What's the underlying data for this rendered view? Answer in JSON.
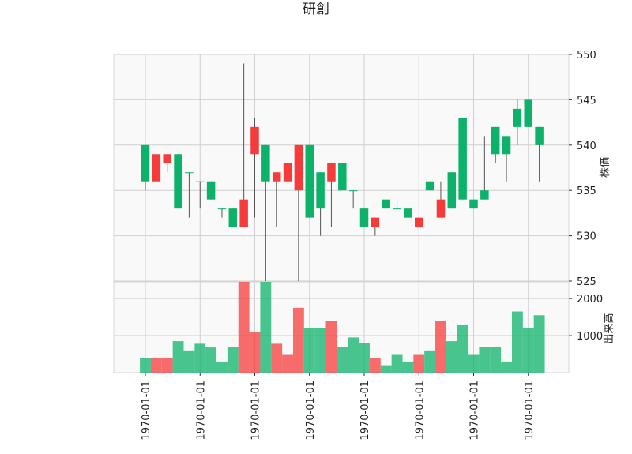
{
  "chart_data": {
    "type": "candlestick",
    "title": "研創",
    "price_ylabel": "株価",
    "volume_ylabel": "出来高",
    "x_tick_labels": [
      "1970-01-01",
      "1970-01-01",
      "1970-01-01",
      "1970-01-01",
      "1970-01-01",
      "1970-01-01",
      "1970-01-01",
      "1970-01-01"
    ],
    "price_ylim": [
      525,
      550
    ],
    "price_ticks": [
      525,
      530,
      535,
      540,
      545,
      550
    ],
    "volume_ticks": [
      1000,
      2000
    ],
    "volume_ylim": [
      0,
      2450
    ],
    "grid": true,
    "colors": {
      "up": "#0cb26a",
      "down": "#f73b3b",
      "wick": "#555555",
      "panel": "#f9f9f9",
      "grid": "#d0d0d0"
    },
    "candles": [
      {
        "open": 536,
        "high": 540,
        "low": 535,
        "close": 540,
        "volume": 400
      },
      {
        "open": 539,
        "high": 539,
        "low": 536,
        "close": 536,
        "volume": 400
      },
      {
        "open": 539,
        "high": 539,
        "low": 537,
        "close": 538,
        "volume": 400
      },
      {
        "open": 533,
        "high": 539,
        "low": 533,
        "close": 539,
        "volume": 850
      },
      {
        "open": 537,
        "high": 537,
        "low": 532,
        "close": 537,
        "volume": 600
      },
      {
        "open": 536,
        "high": 536,
        "low": 533,
        "close": 536,
        "volume": 780
      },
      {
        "open": 534,
        "high": 536,
        "low": 534,
        "close": 536,
        "volume": 680
      },
      {
        "open": 533,
        "high": 533,
        "low": 532,
        "close": 533,
        "volume": 300
      },
      {
        "open": 531,
        "high": 533,
        "low": 531,
        "close": 533,
        "volume": 700
      },
      {
        "open": 534,
        "high": 549,
        "low": 531,
        "close": 531,
        "volume": 2450
      },
      {
        "open": 542,
        "high": 543,
        "low": 532,
        "close": 539,
        "volume": 1100
      },
      {
        "open": 536,
        "high": 540,
        "low": 525,
        "close": 540,
        "volume": 2450
      },
      {
        "open": 537,
        "high": 537,
        "low": 531,
        "close": 536,
        "volume": 780
      },
      {
        "open": 538,
        "high": 538,
        "low": 536,
        "close": 536,
        "volume": 500
      },
      {
        "open": 540,
        "high": 540,
        "low": 525,
        "close": 535,
        "volume": 1750
      },
      {
        "open": 532,
        "high": 540,
        "low": 532,
        "close": 540,
        "volume": 1200
      },
      {
        "open": 533,
        "high": 537,
        "low": 530,
        "close": 537,
        "volume": 1200
      },
      {
        "open": 538,
        "high": 538,
        "low": 531,
        "close": 536,
        "volume": 1400
      },
      {
        "open": 535,
        "high": 538,
        "low": 535,
        "close": 538,
        "volume": 700
      },
      {
        "open": 535,
        "high": 535,
        "low": 533,
        "close": 535,
        "volume": 950
      },
      {
        "open": 531,
        "high": 533,
        "low": 531,
        "close": 533,
        "volume": 800
      },
      {
        "open": 532,
        "high": 532,
        "low": 530,
        "close": 531,
        "volume": 400
      },
      {
        "open": 533,
        "high": 534,
        "low": 533,
        "close": 534,
        "volume": 200
      },
      {
        "open": 533,
        "high": 534,
        "low": 533,
        "close": 533,
        "volume": 500
      },
      {
        "open": 532,
        "high": 533,
        "low": 532,
        "close": 533,
        "volume": 300
      },
      {
        "open": 532,
        "high": 532,
        "low": 531,
        "close": 531,
        "volume": 500
      },
      {
        "open": 535,
        "high": 536,
        "low": 535,
        "close": 536,
        "volume": 600
      },
      {
        "open": 534,
        "high": 536,
        "low": 532,
        "close": 532,
        "volume": 1400
      },
      {
        "open": 533,
        "high": 537,
        "low": 533,
        "close": 537,
        "volume": 850
      },
      {
        "open": 534,
        "high": 543,
        "low": 534,
        "close": 543,
        "volume": 1300
      },
      {
        "open": 533,
        "high": 534,
        "low": 533,
        "close": 534,
        "volume": 500
      },
      {
        "open": 534,
        "high": 541,
        "low": 534,
        "close": 535,
        "volume": 700
      },
      {
        "open": 539,
        "high": 542,
        "low": 538,
        "close": 542,
        "volume": 700
      },
      {
        "open": 539,
        "high": 541,
        "low": 536,
        "close": 541,
        "volume": 300
      },
      {
        "open": 542,
        "high": 545,
        "low": 540,
        "close": 544,
        "volume": 1650
      },
      {
        "open": 542,
        "high": 545,
        "low": 542,
        "close": 545,
        "volume": 1200
      },
      {
        "open": 540,
        "high": 542,
        "low": 536,
        "close": 542,
        "volume": 1550
      }
    ]
  }
}
